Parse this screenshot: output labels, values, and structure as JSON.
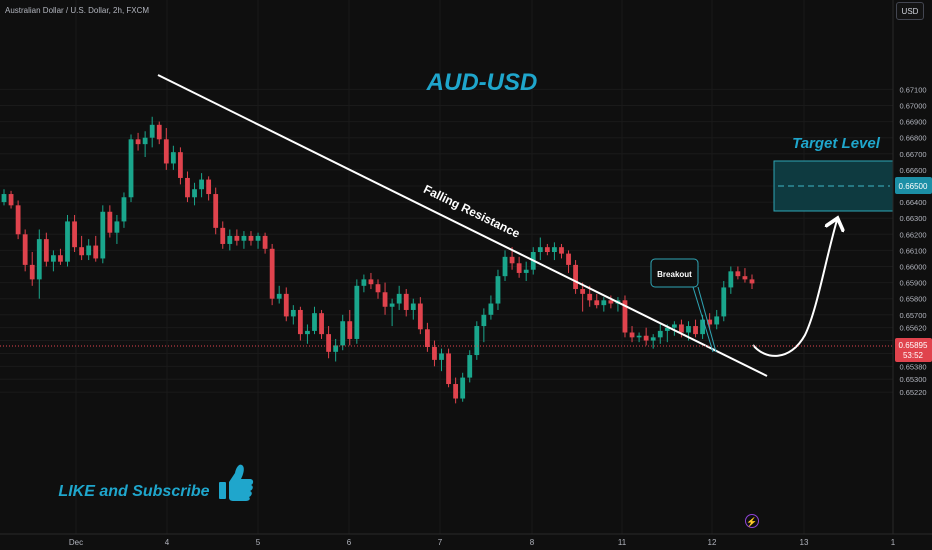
{
  "header": {
    "symbol_label": "Australian Dollar / U.S. Dollar, 2h, FXCM",
    "currency_button": "USD"
  },
  "annotations": {
    "title": "AUD-USD",
    "trendline_label": "Falling Resistance",
    "breakout_label": "Breakout",
    "target_label": "Target Level",
    "cta_label": "LIKE and Subscribe"
  },
  "price_scale": {
    "labels": [
      "0.67100",
      "0.67000",
      "0.66900",
      "0.66800",
      "0.66700",
      "0.66600",
      "0.66500",
      "0.66400",
      "0.66300",
      "0.66200",
      "0.66100",
      "0.66000",
      "0.65900",
      "0.65800",
      "0.65700",
      "0.65620",
      "0.65540",
      "0.65460",
      "0.65380",
      "0.65300",
      "0.65220"
    ],
    "current_price": "0.65895",
    "countdown": "53:52",
    "target_price": "0.66500"
  },
  "time_scale": {
    "labels": [
      "Dec",
      "4",
      "5",
      "6",
      "7",
      "8",
      "11",
      "12",
      "13",
      "1"
    ]
  },
  "chart_data": {
    "type": "candlestick",
    "title": "AUD-USD",
    "x_ticks": [
      "Dec",
      "4",
      "5",
      "6",
      "7",
      "8",
      "11",
      "12",
      "13",
      "1"
    ],
    "y_ticks": [
      "0.67100",
      "0.67000",
      "0.66900",
      "0.66800",
      "0.66700",
      "0.66600",
      "0.66500",
      "0.66400",
      "0.66300",
      "0.66200",
      "0.66100",
      "0.66000",
      "0.65900",
      "0.65800",
      "0.65700",
      "0.65620",
      "0.65540",
      "0.65460",
      "0.65380",
      "0.65300",
      "0.65220"
    ],
    "current_price": 0.65895,
    "target_zone": [
      0.66425,
      0.66575
    ],
    "target_level": 0.665,
    "candles": [
      [
        0.664,
        0.6648,
        0.6638,
        0.6645
      ],
      [
        0.6645,
        0.6647,
        0.6636,
        0.6638
      ],
      [
        0.6638,
        0.6641,
        0.6617,
        0.662
      ],
      [
        0.662,
        0.6623,
        0.6597,
        0.6601
      ],
      [
        0.6601,
        0.6609,
        0.6588,
        0.6592
      ],
      [
        0.6592,
        0.6623,
        0.658,
        0.6617
      ],
      [
        0.6617,
        0.6621,
        0.66,
        0.6603
      ],
      [
        0.6603,
        0.661,
        0.6597,
        0.6607
      ],
      [
        0.6607,
        0.6611,
        0.6601,
        0.6603
      ],
      [
        0.6603,
        0.6632,
        0.66,
        0.6628
      ],
      [
        0.6628,
        0.6632,
        0.6609,
        0.6612
      ],
      [
        0.6612,
        0.6619,
        0.6604,
        0.6607
      ],
      [
        0.6607,
        0.6617,
        0.6604,
        0.6613
      ],
      [
        0.6613,
        0.6619,
        0.6603,
        0.6605
      ],
      [
        0.6605,
        0.6638,
        0.6602,
        0.6634
      ],
      [
        0.6634,
        0.6638,
        0.6618,
        0.6621
      ],
      [
        0.6621,
        0.6632,
        0.6614,
        0.6628
      ],
      [
        0.6628,
        0.6646,
        0.6624,
        0.6643
      ],
      [
        0.6643,
        0.6682,
        0.664,
        0.6679
      ],
      [
        0.6679,
        0.6683,
        0.6672,
        0.6676
      ],
      [
        0.6676,
        0.6684,
        0.6668,
        0.668
      ],
      [
        0.668,
        0.6693,
        0.6674,
        0.6688
      ],
      [
        0.6688,
        0.669,
        0.6676,
        0.6679
      ],
      [
        0.6679,
        0.6686,
        0.666,
        0.6664
      ],
      [
        0.6664,
        0.6675,
        0.666,
        0.6671
      ],
      [
        0.6671,
        0.6674,
        0.6651,
        0.6655
      ],
      [
        0.6655,
        0.6659,
        0.664,
        0.6643
      ],
      [
        0.6643,
        0.6652,
        0.6638,
        0.6648
      ],
      [
        0.6648,
        0.6658,
        0.6643,
        0.6654
      ],
      [
        0.6654,
        0.6656,
        0.6641,
        0.6645
      ],
      [
        0.6645,
        0.6649,
        0.662,
        0.6624
      ],
      [
        0.6624,
        0.6628,
        0.6611,
        0.6614
      ],
      [
        0.6614,
        0.6623,
        0.661,
        0.6619
      ],
      [
        0.6619,
        0.6623,
        0.6613,
        0.6616
      ],
      [
        0.6616,
        0.6622,
        0.6611,
        0.6619
      ],
      [
        0.6619,
        0.6622,
        0.6613,
        0.6616
      ],
      [
        0.6616,
        0.6621,
        0.6611,
        0.6619
      ],
      [
        0.6619,
        0.6621,
        0.6608,
        0.6611
      ],
      [
        0.6611,
        0.6614,
        0.6576,
        0.658
      ],
      [
        0.658,
        0.6588,
        0.6577,
        0.6583
      ],
      [
        0.6583,
        0.6587,
        0.6566,
        0.6569
      ],
      [
        0.6569,
        0.6576,
        0.6564,
        0.6573
      ],
      [
        0.6573,
        0.6575,
        0.6554,
        0.6558
      ],
      [
        0.6558,
        0.6564,
        0.6552,
        0.656
      ],
      [
        0.656,
        0.6575,
        0.6558,
        0.6571
      ],
      [
        0.6571,
        0.6573,
        0.6555,
        0.6558
      ],
      [
        0.6558,
        0.6563,
        0.6543,
        0.6547
      ],
      [
        0.6547,
        0.6555,
        0.6541,
        0.6551
      ],
      [
        0.6551,
        0.657,
        0.6548,
        0.6566
      ],
      [
        0.6566,
        0.6573,
        0.6551,
        0.6555
      ],
      [
        0.6555,
        0.6592,
        0.6552,
        0.6588
      ],
      [
        0.6588,
        0.6595,
        0.6584,
        0.6592
      ],
      [
        0.6592,
        0.6596,
        0.6586,
        0.6589
      ],
      [
        0.6589,
        0.6592,
        0.658,
        0.6584
      ],
      [
        0.6584,
        0.659,
        0.657,
        0.6575
      ],
      [
        0.6575,
        0.658,
        0.6563,
        0.6577
      ],
      [
        0.6577,
        0.6588,
        0.6573,
        0.6583
      ],
      [
        0.6583,
        0.6586,
        0.6569,
        0.6573
      ],
      [
        0.6573,
        0.658,
        0.6567,
        0.6577
      ],
      [
        0.6577,
        0.6581,
        0.6558,
        0.6561
      ],
      [
        0.6561,
        0.6565,
        0.6547,
        0.655
      ],
      [
        0.655,
        0.6554,
        0.6538,
        0.6542
      ],
      [
        0.6542,
        0.6549,
        0.6535,
        0.6546
      ],
      [
        0.6546,
        0.6549,
        0.6525,
        0.6527
      ],
      [
        0.6527,
        0.6531,
        0.6515,
        0.6518
      ],
      [
        0.6518,
        0.6534,
        0.6516,
        0.6531
      ],
      [
        0.6531,
        0.6548,
        0.6528,
        0.6545
      ],
      [
        0.6545,
        0.6566,
        0.6542,
        0.6563
      ],
      [
        0.6563,
        0.6574,
        0.6553,
        0.657
      ],
      [
        0.657,
        0.6582,
        0.6567,
        0.6577
      ],
      [
        0.6577,
        0.6598,
        0.6573,
        0.6594
      ],
      [
        0.6594,
        0.661,
        0.6591,
        0.6606
      ],
      [
        0.6606,
        0.6612,
        0.6598,
        0.6602
      ],
      [
        0.6602,
        0.6606,
        0.6593,
        0.6596
      ],
      [
        0.6596,
        0.6603,
        0.6591,
        0.6598
      ],
      [
        0.6598,
        0.6612,
        0.6595,
        0.6609
      ],
      [
        0.6609,
        0.6618,
        0.6604,
        0.6612
      ],
      [
        0.6612,
        0.6614,
        0.6607,
        0.6609
      ],
      [
        0.6609,
        0.6615,
        0.6604,
        0.6612
      ],
      [
        0.6612,
        0.6614,
        0.6605,
        0.6608
      ],
      [
        0.6608,
        0.661,
        0.6596,
        0.6601
      ],
      [
        0.6601,
        0.6604,
        0.6583,
        0.6586
      ],
      [
        0.6586,
        0.659,
        0.6572,
        0.6583
      ],
      [
        0.6583,
        0.6588,
        0.6575,
        0.6579
      ],
      [
        0.6579,
        0.6583,
        0.6574,
        0.6576
      ],
      [
        0.6576,
        0.6581,
        0.6572,
        0.6579
      ],
      [
        0.6579,
        0.6582,
        0.6574,
        0.6577
      ],
      [
        0.6577,
        0.6581,
        0.6572,
        0.6579
      ],
      [
        0.6579,
        0.6582,
        0.6556,
        0.6559
      ],
      [
        0.6559,
        0.6563,
        0.6553,
        0.6556
      ],
      [
        0.6556,
        0.6559,
        0.6553,
        0.6557
      ],
      [
        0.6557,
        0.6562,
        0.6551,
        0.6554
      ],
      [
        0.6554,
        0.6558,
        0.6549,
        0.6556
      ],
      [
        0.6556,
        0.6565,
        0.6552,
        0.656
      ],
      [
        0.656,
        0.6564,
        0.6553,
        0.6562
      ],
      [
        0.6562,
        0.6566,
        0.6557,
        0.6564
      ],
      [
        0.6564,
        0.6567,
        0.6556,
        0.6559
      ],
      [
        0.6559,
        0.6566,
        0.6554,
        0.6563
      ],
      [
        0.6563,
        0.6567,
        0.6556,
        0.6558
      ],
      [
        0.6558,
        0.657,
        0.6555,
        0.6567
      ],
      [
        0.6567,
        0.6571,
        0.6561,
        0.6564
      ],
      [
        0.6564,
        0.6573,
        0.6561,
        0.6569
      ],
      [
        0.6569,
        0.6591,
        0.6566,
        0.6587
      ],
      [
        0.6587,
        0.66,
        0.6583,
        0.6597
      ],
      [
        0.6597,
        0.66,
        0.6592,
        0.6594
      ],
      [
        0.6594,
        0.6599,
        0.659,
        0.6592
      ],
      [
        0.6592,
        0.6595,
        0.6586,
        0.65895
      ]
    ]
  }
}
